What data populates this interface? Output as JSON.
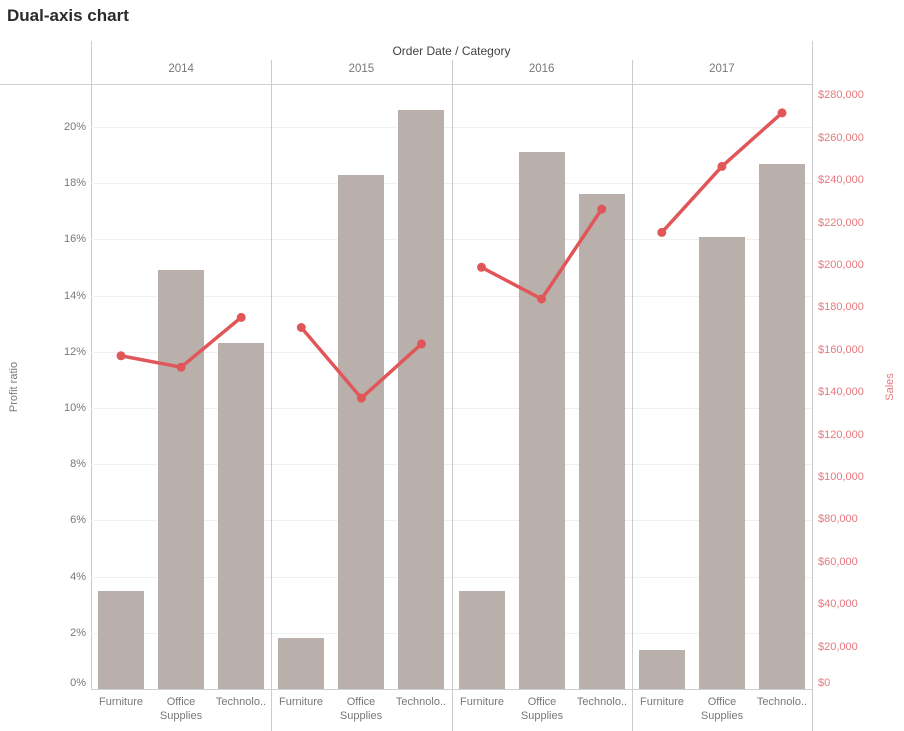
{
  "title": "Dual-axis chart",
  "header": {
    "column_field_label": "Order Date / Category"
  },
  "chart_data": {
    "type": "bar",
    "subtype": "dual-axis combo (bars + line)",
    "title": "Dual-axis chart",
    "column_header": "Order Date / Category",
    "years": [
      "2014",
      "2015",
      "2016",
      "2017"
    ],
    "categories": [
      "Furniture",
      "Office Supplies",
      "Technology"
    ],
    "category_tick_labels": [
      "Furniture",
      "Office Supplies",
      "Technolo.."
    ],
    "series": [
      {
        "name": "Profit ratio",
        "type": "bar",
        "axis": "left",
        "unit": "%",
        "values_by_year": {
          "2014": [
            3.5,
            14.9,
            12.3
          ],
          "2015": [
            1.8,
            18.3,
            20.6
          ],
          "2016": [
            3.5,
            19.1,
            17.6
          ],
          "2017": [
            1.4,
            16.1,
            18.7
          ]
        }
      },
      {
        "name": "Sales",
        "type": "line",
        "axis": "right",
        "unit": "USD",
        "values_by_year": {
          "2014": [
            157193,
            151776,
            175278
          ],
          "2015": [
            170518,
            137233,
            162781
          ],
          "2016": [
            198901,
            183940,
            226364
          ],
          "2017": [
            215387,
            246524,
            271730
          ]
        }
      }
    ],
    "left_axis": {
      "title": "Profit ratio",
      "tick_step": 2,
      "ylim": [
        0,
        21.5
      ],
      "tick_labels": [
        "0%",
        "2%",
        "4%",
        "6%",
        "8%",
        "10%",
        "12%",
        "14%",
        "16%",
        "18%",
        "20%"
      ]
    },
    "right_axis": {
      "title": "Sales",
      "tick_step": 20000,
      "ylim": [
        0,
        285000
      ],
      "tick_labels": [
        "$0",
        "$20,000",
        "$40,000",
        "$60,000",
        "$80,000",
        "$100,000",
        "$120,000",
        "$140,000",
        "$160,000",
        "$180,000",
        "$200,000",
        "$220,000",
        "$240,000",
        "$260,000",
        "$280,000"
      ]
    },
    "grid": true,
    "legend": "none",
    "colors": {
      "bar": "#b9afab",
      "line": "#e15759",
      "right_axis_text": "#e5797e",
      "left_axis_text": "#787878",
      "grid_line": "#f0f0f0",
      "pane_border": "#cccccc",
      "baseline": "#d0d0d0",
      "header_text": "#424242",
      "title_text": "#2b2b2b"
    }
  }
}
